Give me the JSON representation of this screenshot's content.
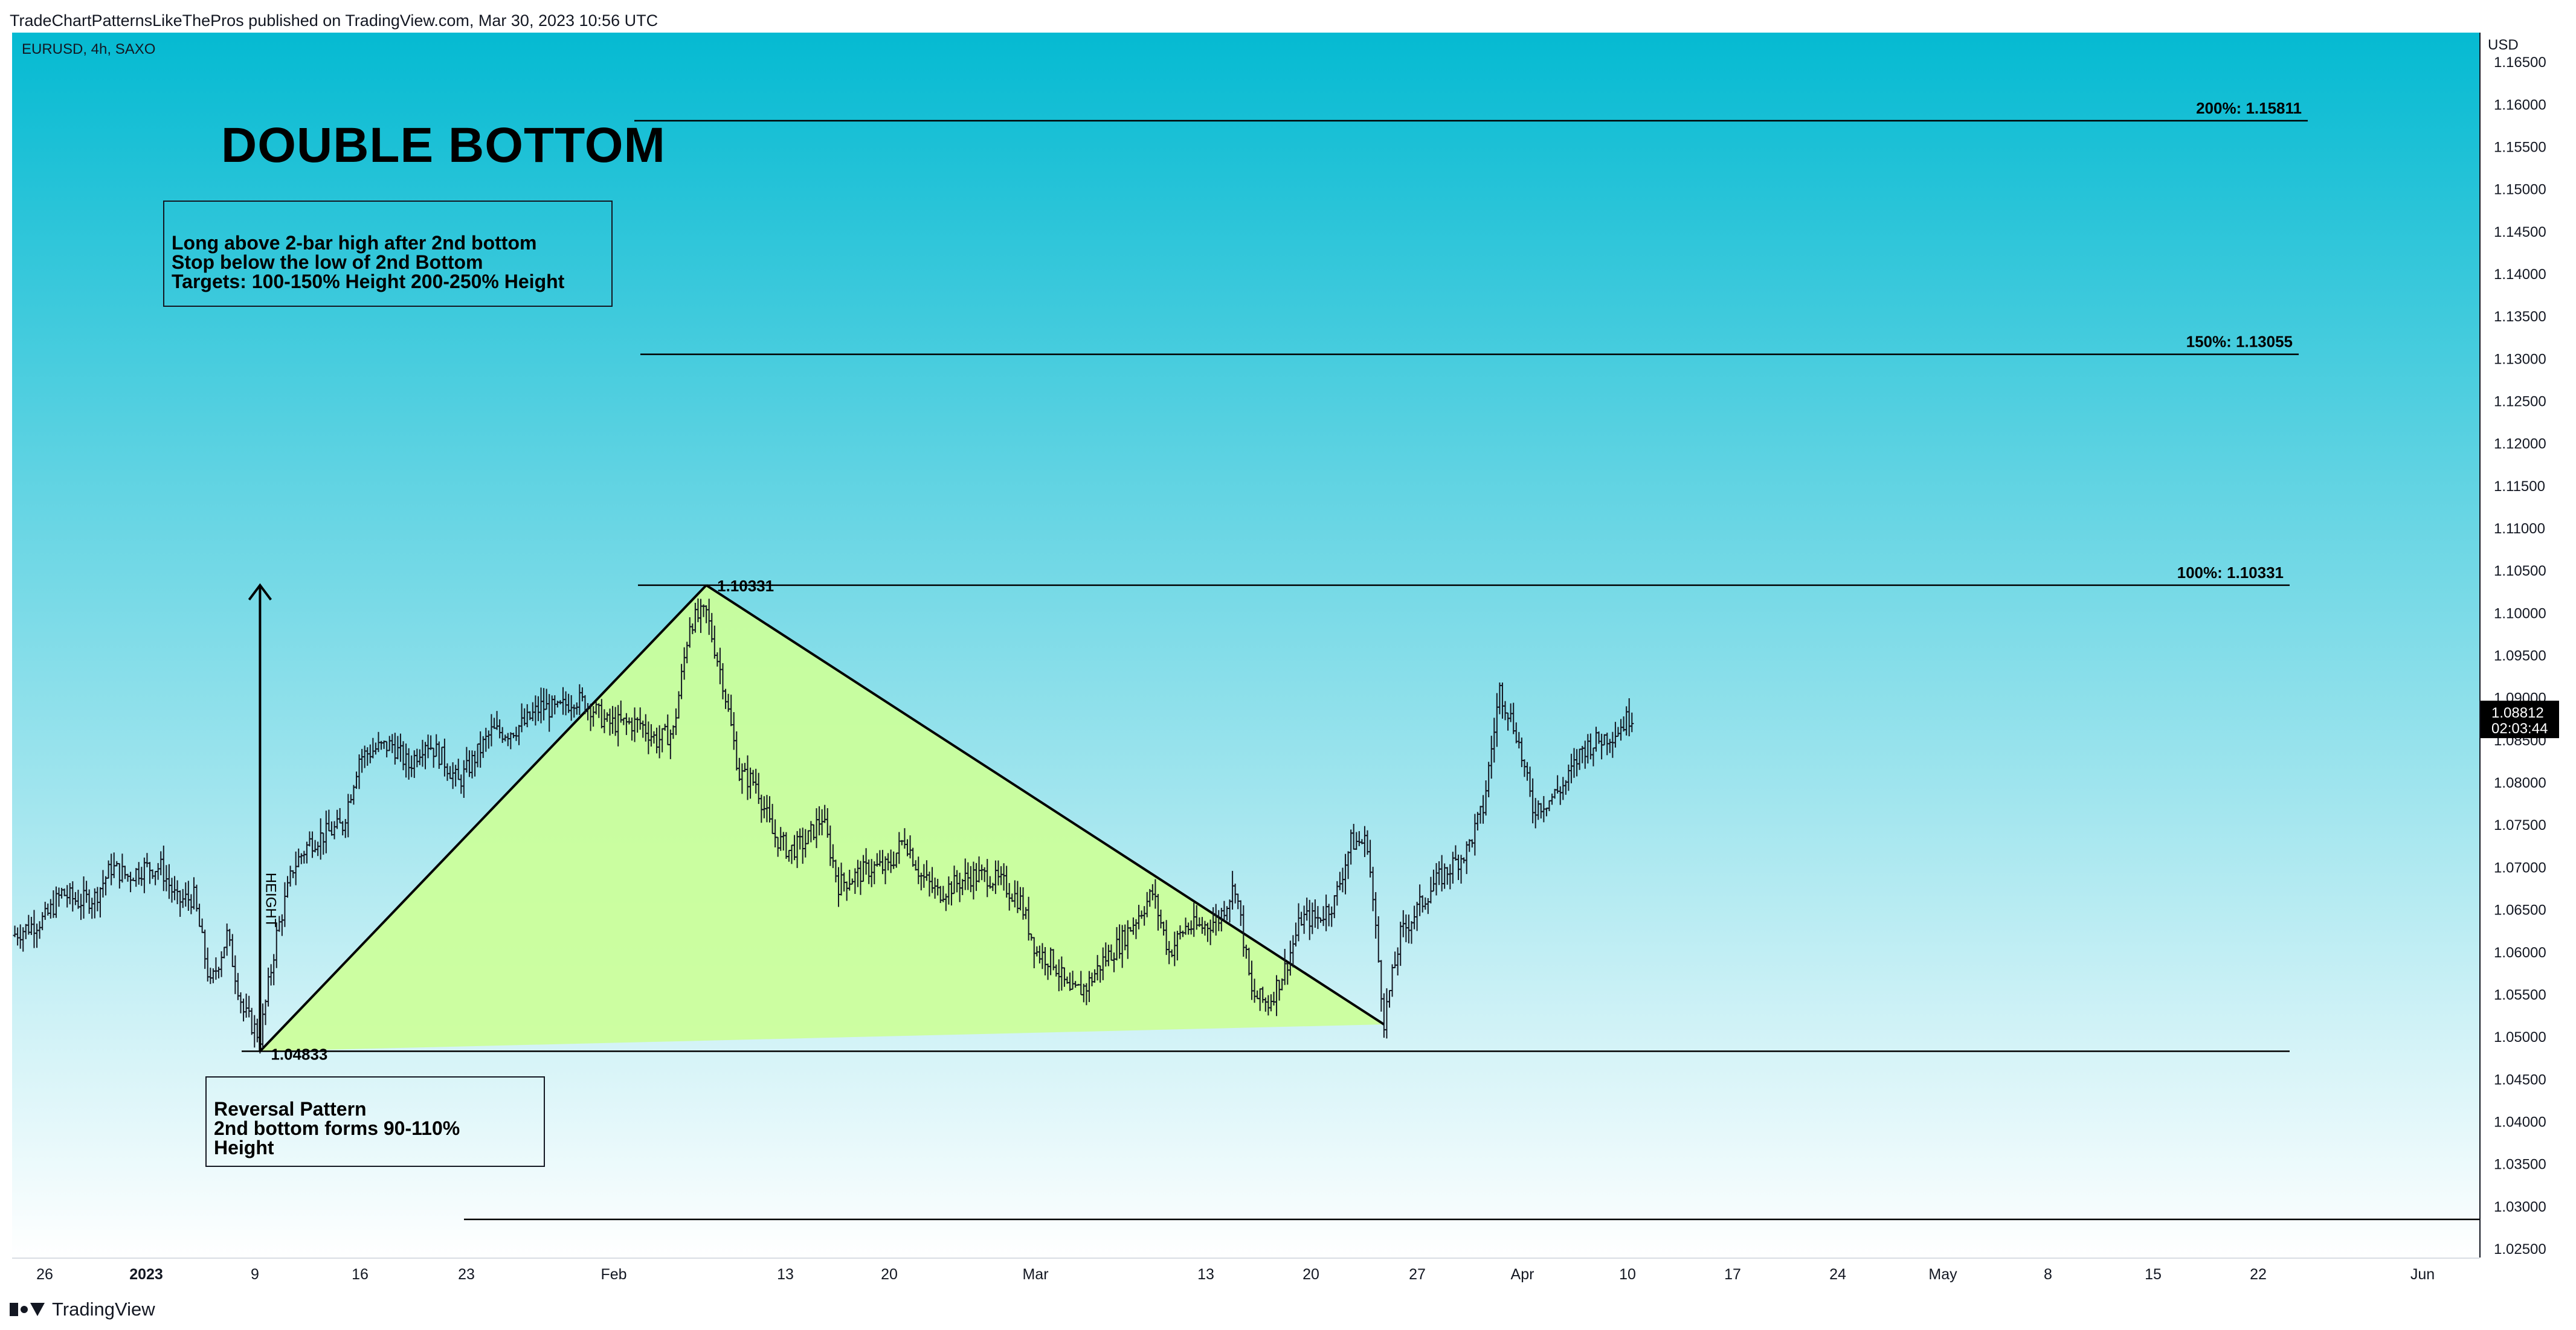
{
  "header": {
    "published": "TradeChartPatternsLikeThePros published on TradingView.com, Mar 30, 2023 10:56 UTC"
  },
  "symbol": "EURUSD, 4h, SAXO",
  "footer": {
    "brand": "TradingView"
  },
  "colors": {
    "bg_top": "#05bad2",
    "bg_bottom": "#ffffff",
    "pattern_fill": "#ccff99",
    "ink": "#131722",
    "price_tag_bg": "#000000"
  },
  "chart_data": {
    "type": "candlestick",
    "title": "DOUBLE BOTTOM",
    "axis_unit": "USD",
    "ylim": [
      1.024,
      1.1685
    ],
    "y_ticks": [
      "1.16500",
      "1.16000",
      "1.15500",
      "1.15000",
      "1.14500",
      "1.14000",
      "1.13500",
      "1.13000",
      "1.12500",
      "1.12000",
      "1.11500",
      "1.11000",
      "1.10500",
      "1.10000",
      "1.09500",
      "1.09000",
      "1.08500",
      "1.08000",
      "1.07500",
      "1.07000",
      "1.06500",
      "1.06000",
      "1.05500",
      "1.05000",
      "1.04500",
      "1.04000",
      "1.03500",
      "1.03000",
      "1.02500"
    ],
    "x_ticks": [
      {
        "label": "26",
        "bold": false
      },
      {
        "label": "2023",
        "bold": true
      },
      {
        "label": "9",
        "bold": false
      },
      {
        "label": "16",
        "bold": false
      },
      {
        "label": "23",
        "bold": false
      },
      {
        "label": "Feb",
        "bold": false
      },
      {
        "label": "13",
        "bold": false
      },
      {
        "label": "20",
        "bold": false
      },
      {
        "label": "Mar",
        "bold": false
      },
      {
        "label": "13",
        "bold": false
      },
      {
        "label": "20",
        "bold": false
      },
      {
        "label": "27",
        "bold": false
      },
      {
        "label": "Apr",
        "bold": false
      },
      {
        "label": "10",
        "bold": false
      },
      {
        "label": "17",
        "bold": false
      },
      {
        "label": "24",
        "bold": false
      },
      {
        "label": "May",
        "bold": false
      },
      {
        "label": "8",
        "bold": false
      },
      {
        "label": "15",
        "bold": false
      },
      {
        "label": "22",
        "bold": false
      },
      {
        "label": "Jun",
        "bold": false
      }
    ],
    "last_price": {
      "value": "1.08812",
      "countdown": "02:03:44"
    },
    "levels": [
      {
        "label": "200%: 1.15811",
        "value": 1.15811
      },
      {
        "label": "150%: 1.13055",
        "value": 1.13055
      },
      {
        "label": "100%: 1.10331",
        "value": 1.10331
      },
      {
        "label": "",
        "value": 1.04833
      },
      {
        "label": "",
        "value": 1.0285
      }
    ],
    "pattern_points": [
      {
        "label": "1.04833",
        "date": "2023-01-06",
        "value": 1.04833
      },
      {
        "label": "1.10331",
        "date": "2023-02-02",
        "value": 1.10331
      },
      {
        "label": "",
        "date": "2023-03-15",
        "value": 1.0515
      }
    ],
    "height_label": "HEIGHT",
    "annotations": {
      "rules": [
        "Long above 2-bar high after 2nd bottom",
        "Stop below the low of 2nd Bottom",
        "Targets: 100-150% Height 200-250% Height"
      ],
      "notes": [
        "Reversal Pattern",
        "2nd bottom forms 90-110%",
        "Height"
      ]
    },
    "price_path": [
      [
        "2022-12-22",
        1.062
      ],
      [
        "2022-12-23",
        1.063
      ],
      [
        "2022-12-24",
        1.064
      ],
      [
        "2022-12-25",
        1.067
      ],
      [
        "2022-12-26",
        1.066
      ],
      [
        "2022-12-27",
        1.0665
      ],
      [
        "2022-12-28",
        1.07
      ],
      [
        "2022-12-29",
        1.069
      ],
      [
        "2022-12-30",
        1.07
      ],
      [
        "2022-12-31",
        1.07
      ],
      [
        "2023-01-01",
        1.066
      ],
      [
        "2023-01-02",
        1.0665
      ],
      [
        "2023-01-03",
        1.056
      ],
      [
        "2023-01-04",
        1.062
      ],
      [
        "2023-01-05",
        1.053
      ],
      [
        "2023-01-06",
        1.05
      ],
      [
        "2023-01-07",
        1.062
      ],
      [
        "2023-01-08",
        1.07
      ],
      [
        "2023-01-09",
        1.073
      ],
      [
        "2023-01-10",
        1.074
      ],
      [
        "2023-01-11",
        1.075
      ],
      [
        "2023-01-12",
        1.083
      ],
      [
        "2023-01-13",
        1.084
      ],
      [
        "2023-01-14",
        1.0845
      ],
      [
        "2023-01-15",
        1.082
      ],
      [
        "2023-01-16",
        1.085
      ],
      [
        "2023-01-17",
        1.083
      ],
      [
        "2023-01-18",
        1.08
      ],
      [
        "2023-01-19",
        1.083
      ],
      [
        "2023-01-20",
        1.086
      ],
      [
        "2023-01-21",
        1.086
      ],
      [
        "2023-01-22",
        1.087
      ],
      [
        "2023-01-23",
        1.089
      ],
      [
        "2023-01-24",
        1.0885
      ],
      [
        "2023-01-25",
        1.09
      ],
      [
        "2023-01-26",
        1.089
      ],
      [
        "2023-01-27",
        1.087
      ],
      [
        "2023-01-28",
        1.087
      ],
      [
        "2023-01-29",
        1.087
      ],
      [
        "2023-01-30",
        1.085
      ],
      [
        "2023-01-31",
        1.086
      ],
      [
        "2023-02-01",
        1.099
      ],
      [
        "2023-02-02",
        1.1
      ],
      [
        "2023-02-03",
        1.092
      ],
      [
        "2023-02-04",
        1.081
      ],
      [
        "2023-02-05",
        1.08
      ],
      [
        "2023-02-06",
        1.074
      ],
      [
        "2023-02-07",
        1.072
      ],
      [
        "2023-02-08",
        1.073
      ],
      [
        "2023-02-09",
        1.076
      ],
      [
        "2023-02-10",
        1.068
      ],
      [
        "2023-02-11",
        1.069
      ],
      [
        "2023-02-12",
        1.07
      ],
      [
        "2023-02-13",
        1.07
      ],
      [
        "2023-02-14",
        1.0735
      ],
      [
        "2023-02-15",
        1.069
      ],
      [
        "2023-02-16",
        1.067
      ],
      [
        "2023-02-17",
        1.068
      ],
      [
        "2023-02-18",
        1.069
      ],
      [
        "2023-02-19",
        1.069
      ],
      [
        "2023-02-20",
        1.068
      ],
      [
        "2023-02-21",
        1.066
      ],
      [
        "2023-02-22",
        1.06
      ],
      [
        "2023-02-23",
        1.059
      ],
      [
        "2023-02-24",
        1.055
      ],
      [
        "2023-02-25",
        1.056
      ],
      [
        "2023-02-26",
        1.059
      ],
      [
        "2023-02-27",
        1.061
      ],
      [
        "2023-02-28",
        1.064
      ],
      [
        "2023-03-01",
        1.067
      ],
      [
        "2023-03-02",
        1.06
      ],
      [
        "2023-03-03",
        1.063
      ],
      [
        "2023-03-04",
        1.063
      ],
      [
        "2023-03-05",
        1.064
      ],
      [
        "2023-03-06",
        1.068
      ],
      [
        "2023-03-07",
        1.055
      ],
      [
        "2023-03-08",
        1.054
      ],
      [
        "2023-03-09",
        1.058
      ],
      [
        "2023-03-10",
        1.064
      ],
      [
        "2023-03-11",
        1.064
      ],
      [
        "2023-03-12",
        1.066
      ],
      [
        "2023-03-13",
        1.073
      ],
      [
        "2023-03-14",
        1.073
      ],
      [
        "2023-03-15",
        1.052
      ],
      [
        "2023-03-16",
        1.062
      ],
      [
        "2023-03-17",
        1.065
      ],
      [
        "2023-03-18",
        1.068
      ],
      [
        "2023-03-19",
        1.07
      ],
      [
        "2023-03-20",
        1.072
      ],
      [
        "2023-03-21",
        1.077
      ],
      [
        "2023-03-22",
        1.091
      ],
      [
        "2023-03-23",
        1.086
      ],
      [
        "2023-03-24",
        1.077
      ],
      [
        "2023-03-25",
        1.078
      ],
      [
        "2023-03-26",
        1.08
      ],
      [
        "2023-03-27",
        1.084
      ],
      [
        "2023-03-28",
        1.085
      ],
      [
        "2023-03-29",
        1.086
      ],
      [
        "2023-03-30",
        1.0881
      ]
    ]
  }
}
